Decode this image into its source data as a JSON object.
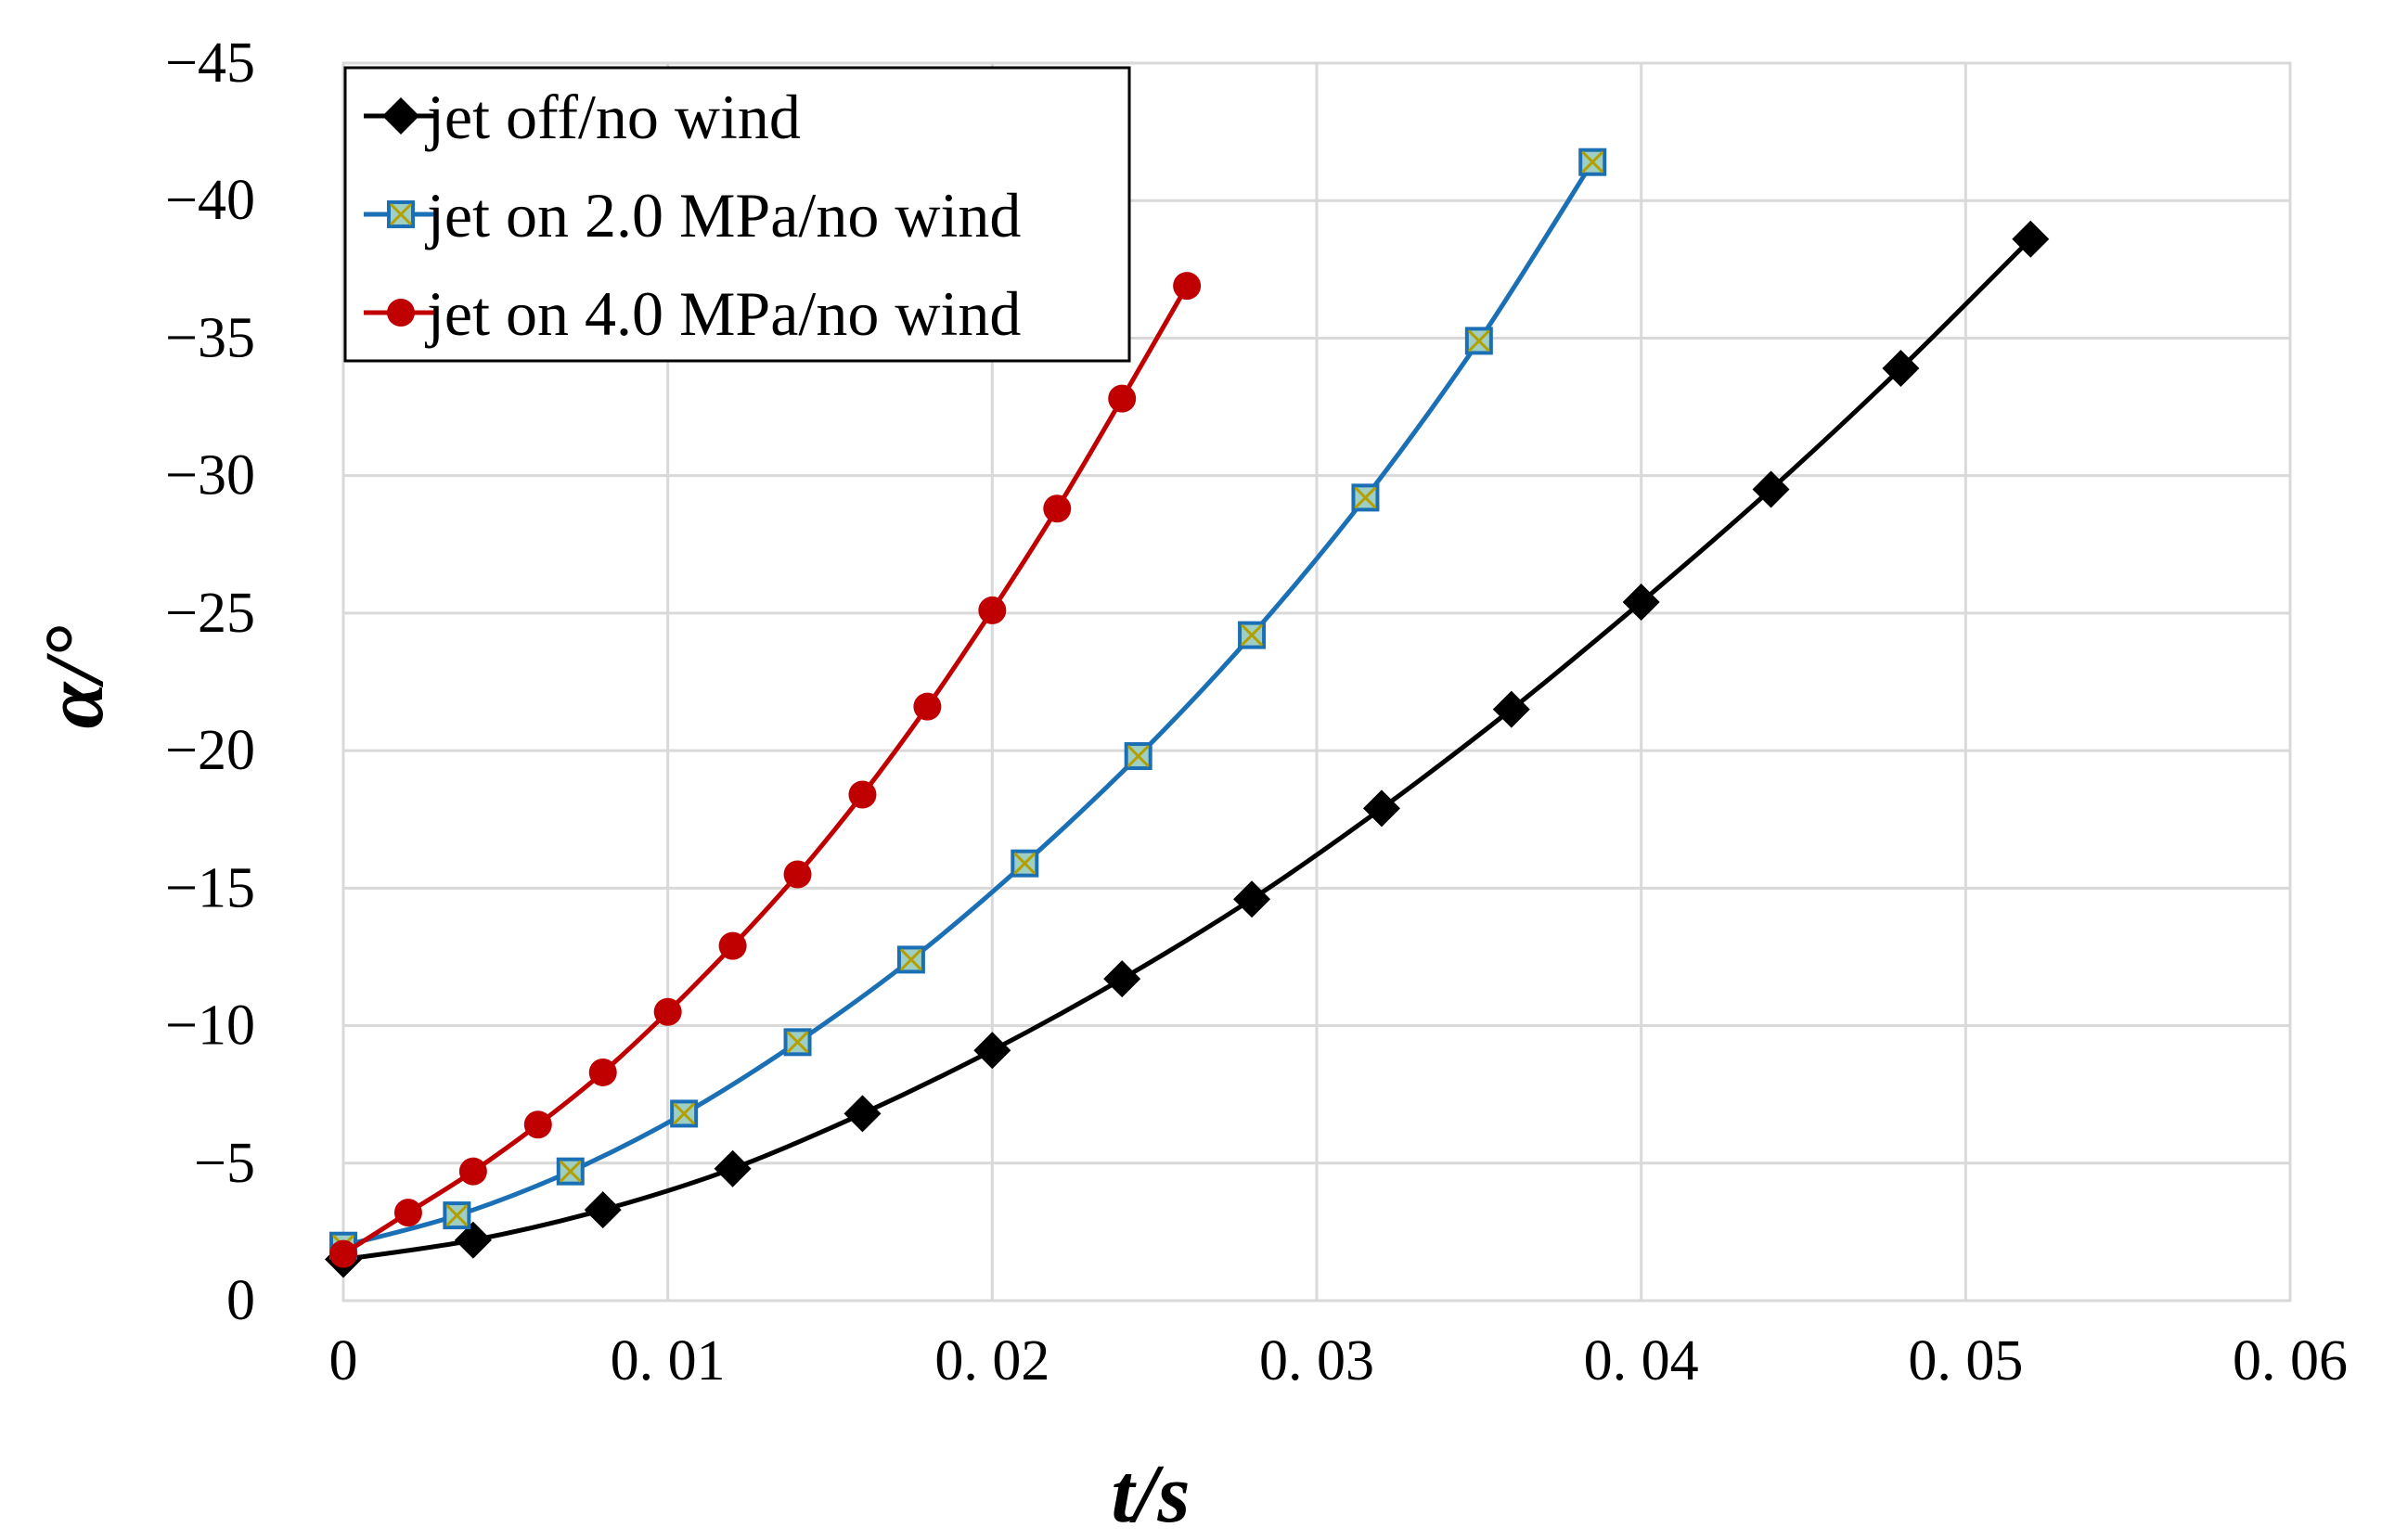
{
  "chart_data": {
    "type": "line",
    "title": "",
    "xlabel": "t/s",
    "ylabel": "α/°",
    "xlim": [
      0,
      0.06
    ],
    "ylim": [
      0,
      -45
    ],
    "x_ticks": [
      0,
      0.01,
      0.02,
      0.03,
      0.04,
      0.05,
      0.06
    ],
    "x_tick_labels": [
      "0",
      "0. 01",
      "0. 02",
      "0. 03",
      "0. 04",
      "0. 05",
      "0. 06"
    ],
    "y_ticks": [
      0,
      -5,
      -10,
      -15,
      -20,
      -25,
      -30,
      -35,
      -40,
      -45
    ],
    "y_tick_labels": [
      "0",
      "−5",
      "−10",
      "−15",
      "−20",
      "−25",
      "−30",
      "−35",
      "−40",
      "−45"
    ],
    "grid": true,
    "legend_position": "top-left",
    "series": [
      {
        "name": "jet off/no wind",
        "color": "#000000",
        "marker": "diamond",
        "x": [
          0,
          0.004,
          0.008,
          0.012,
          0.016,
          0.02,
          0.024,
          0.028,
          0.032,
          0.036,
          0.04,
          0.044,
          0.048,
          0.052
        ],
        "y": [
          -1.5,
          -2.2,
          -3.3,
          -4.8,
          -6.8,
          -9.1,
          -11.7,
          -14.6,
          -17.9,
          -21.5,
          -25.4,
          -29.5,
          -33.9,
          -38.6
        ]
      },
      {
        "name": "jet on 2.0 MPa/no wind",
        "color": "#1a6fb5",
        "marker": "square-x",
        "x": [
          0,
          0.0035,
          0.007,
          0.0105,
          0.014,
          0.0175,
          0.021,
          0.0245,
          0.028,
          0.0315,
          0.035,
          0.0385
        ],
        "y": [
          -2.0,
          -3.1,
          -4.7,
          -6.8,
          -9.4,
          -12.4,
          -15.9,
          -19.8,
          -24.2,
          -29.2,
          -34.9,
          -41.4
        ]
      },
      {
        "name": "jet on 4.0 MPa/no wind",
        "color": "#c00000",
        "marker": "circle",
        "x": [
          0,
          0.002,
          0.004,
          0.006,
          0.008,
          0.01,
          0.012,
          0.014,
          0.016,
          0.018,
          0.02,
          0.022,
          0.024,
          0.026
        ],
        "y": [
          -1.7,
          -3.2,
          -4.7,
          -6.4,
          -8.3,
          -10.5,
          -12.9,
          -15.5,
          -18.4,
          -21.6,
          -25.1,
          -28.8,
          -32.8,
          -36.9
        ]
      }
    ]
  }
}
